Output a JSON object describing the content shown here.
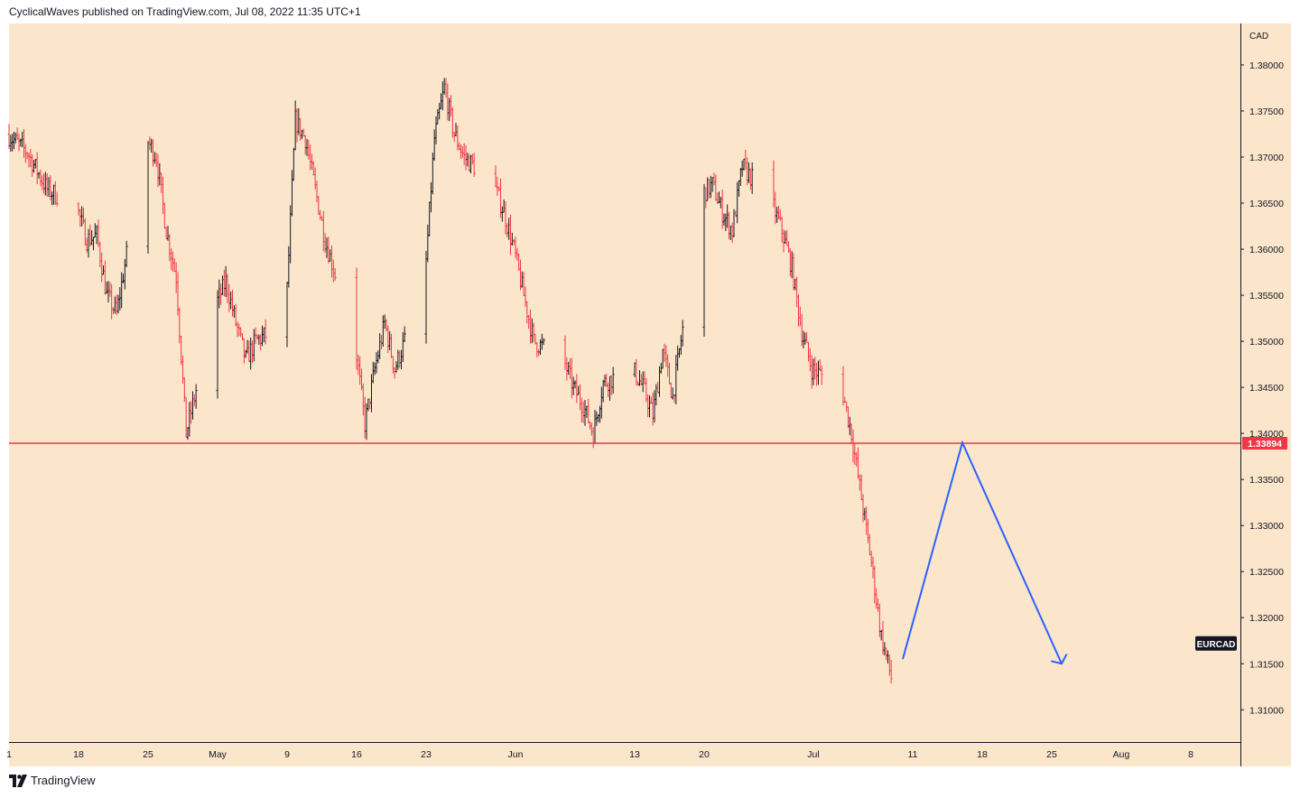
{
  "header": {
    "text": "CyclicalWaves published on TradingView.com, Jul 08, 2022 11:35 UTC+1"
  },
  "footer": {
    "brand": "TradingView",
    "logo_icon": "tradingview-logo-icon"
  },
  "colors": {
    "background": "#FBE5CB",
    "up": "#131722",
    "down": "#F23645",
    "level_line": "#F23645",
    "projection": "#2962FF",
    "symbol_label_bg": "#131722"
  },
  "chart_data": {
    "type": "ohlc",
    "symbol": "EURCAD",
    "currency": "CAD",
    "x_ticks": [
      "1",
      "18",
      "25",
      "May",
      "9",
      "16",
      "23",
      "Jun",
      "13",
      "20",
      "Jul",
      "11",
      "18",
      "25",
      "Aug",
      "8"
    ],
    "y_ticks": [
      "1.38000",
      "1.37500",
      "1.37000",
      "1.36500",
      "1.36000",
      "1.35500",
      "1.35000",
      "1.34500",
      "1.34000",
      "1.33500",
      "1.33000",
      "1.32500",
      "1.32000",
      "1.31500",
      "1.31000"
    ],
    "ylim": [
      1.3065,
      1.3845
    ],
    "xlim": [
      "2022-04-11",
      "2022-08-13"
    ],
    "support_level": {
      "value": 1.33894,
      "label": "1.33894"
    },
    "daily_path": [
      [
        "2022-04-11",
        1.3725
      ],
      [
        "2022-04-13",
        1.3705
      ],
      [
        "2022-04-15",
        1.3665
      ],
      [
        "2022-04-18",
        1.3645
      ],
      [
        "2022-04-19",
        1.361
      ],
      [
        "2022-04-20",
        1.3615
      ],
      [
        "2022-04-21",
        1.355
      ],
      [
        "2022-04-22",
        1.353
      ],
      [
        "2022-04-25",
        1.372
      ],
      [
        "2022-04-26",
        1.37
      ],
      [
        "2022-04-27",
        1.362
      ],
      [
        "2022-04-28",
        1.357
      ],
      [
        "2022-04-29",
        1.34
      ],
      [
        "2022-05-02",
        1.354
      ],
      [
        "2022-05-03",
        1.3565
      ],
      [
        "2022-05-04",
        1.352
      ],
      [
        "2022-05-05",
        1.348
      ],
      [
        "2022-05-06",
        1.35
      ],
      [
        "2022-05-09",
        1.352
      ],
      [
        "2022-05-10",
        1.374
      ],
      [
        "2022-05-11",
        1.372
      ],
      [
        "2022-05-12",
        1.3665
      ],
      [
        "2022-05-13",
        1.361
      ],
      [
        "2022-05-16",
        1.35
      ],
      [
        "2022-05-17",
        1.341
      ],
      [
        "2022-05-18",
        1.347
      ],
      [
        "2022-05-19",
        1.352
      ],
      [
        "2022-05-20",
        1.347
      ],
      [
        "2022-05-23",
        1.356
      ],
      [
        "2022-05-24",
        1.372
      ],
      [
        "2022-05-25",
        1.3775
      ],
      [
        "2022-05-26",
        1.3725
      ],
      [
        "2022-05-27",
        1.37
      ],
      [
        "2022-05-30",
        1.367
      ],
      [
        "2022-05-31",
        1.364
      ],
      [
        "2022-06-01",
        1.36
      ],
      [
        "2022-06-02",
        1.355
      ],
      [
        "2022-06-03",
        1.35
      ],
      [
        "2022-06-06",
        1.348
      ],
      [
        "2022-06-07",
        1.345
      ],
      [
        "2022-06-08",
        1.343
      ],
      [
        "2022-06-09",
        1.34
      ],
      [
        "2022-06-10",
        1.3455
      ],
      [
        "2022-06-13",
        1.347
      ],
      [
        "2022-06-14",
        1.345
      ],
      [
        "2022-06-15",
        1.342
      ],
      [
        "2022-06-16",
        1.349
      ],
      [
        "2022-06-17",
        1.344
      ],
      [
        "2022-06-20",
        1.366
      ],
      [
        "2022-06-21",
        1.367
      ],
      [
        "2022-06-22",
        1.364
      ],
      [
        "2022-06-23",
        1.362
      ],
      [
        "2022-06-24",
        1.369
      ],
      [
        "2022-06-27",
        1.365
      ],
      [
        "2022-06-28",
        1.362
      ],
      [
        "2022-06-29",
        1.358
      ],
      [
        "2022-06-30",
        1.351
      ],
      [
        "2022-07-01",
        1.347
      ],
      [
        "2022-07-04",
        1.345
      ],
      [
        "2022-07-05",
        1.34
      ],
      [
        "2022-07-06",
        1.333
      ],
      [
        "2022-07-07",
        1.326
      ],
      [
        "2022-07-08",
        1.318
      ]
    ],
    "projection": [
      {
        "date": "2022-07-10",
        "price": 1.3155
      },
      {
        "date": "2022-07-16",
        "price": 1.339
      },
      {
        "date": "2022-07-26",
        "price": 1.315
      }
    ]
  }
}
